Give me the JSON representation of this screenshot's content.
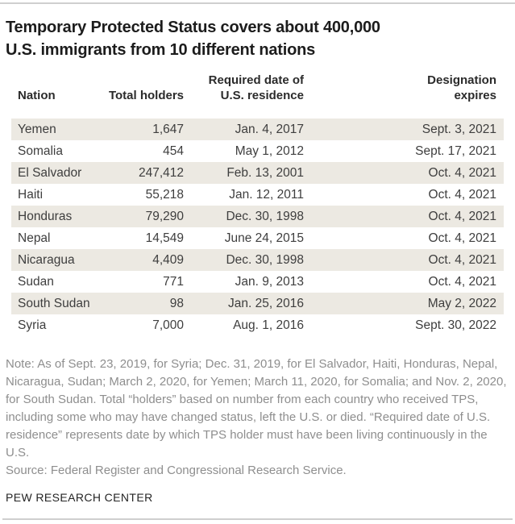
{
  "colors": {
    "stripe": "#ece9e2",
    "rule": "#cfcfcf",
    "title_text": "#1c1c1c",
    "note_text": "#8e8e8e"
  },
  "title": {
    "lines": [
      "Temporary Protected Status covers about 400,000",
      "U.S. immigrants from 10 different nations"
    ]
  },
  "table": {
    "headers": [
      "Nation",
      "Total holders",
      "Required date of\nU.S. residence",
      "Designation\nexpires"
    ]
  },
  "chart_data": {
    "type": "table",
    "title": "Temporary Protected Status covers about 400,000 U.S. immigrants from 10 different nations",
    "columns": [
      "Nation",
      "Total holders",
      "Required date of U.S. residence",
      "Designation expires"
    ],
    "rows": [
      [
        "Yemen",
        "1,647",
        "Jan. 4, 2017",
        "Sept. 3, 2021"
      ],
      [
        "Somalia",
        "454",
        "May 1, 2012",
        "Sept. 17, 2021"
      ],
      [
        "El Salvador",
        "247,412",
        "Feb. 13, 2001",
        "Oct. 4, 2021"
      ],
      [
        "Haiti",
        "55,218",
        "Jan. 12, 2011",
        "Oct. 4, 2021"
      ],
      [
        "Honduras",
        "79,290",
        "Dec. 30, 1998",
        "Oct. 4, 2021"
      ],
      [
        "Nepal",
        "14,549",
        "June 24, 2015",
        "Oct. 4, 2021"
      ],
      [
        "Nicaragua",
        "4,409",
        "Dec. 30, 1998",
        "Oct. 4, 2021"
      ],
      [
        "Sudan",
        "771",
        "Jan. 9, 2013",
        "Oct. 4, 2021"
      ],
      [
        "South Sudan",
        "98",
        "Jan. 25, 2016",
        "May 2, 2022"
      ],
      [
        "Syria",
        "7,000",
        "Aug. 1, 2016",
        "Sept. 30, 2022"
      ]
    ],
    "total_holders_values": [
      1647,
      454,
      247412,
      55218,
      79290,
      14549,
      4409,
      771,
      98,
      7000
    ]
  },
  "note": "Note: As of Sept. 23, 2019, for Syria; Dec. 31, 2019, for El Salvador, Haiti, Honduras, Nepal, Nicaragua, Sudan; March 2, 2020, for Yemen; March 11, 2020, for Somalia; and Nov. 2, 2020, for South Sudan. Total “holders” based on number from each country who received TPS, including some who may have changed status, left the U.S. or died. “Required date of U.S. residence” represents date by which TPS holder must have been living continuously in the U.S.",
  "source": "Source: Federal Register and Congressional Research Service.",
  "footer": "PEW RESEARCH CENTER"
}
